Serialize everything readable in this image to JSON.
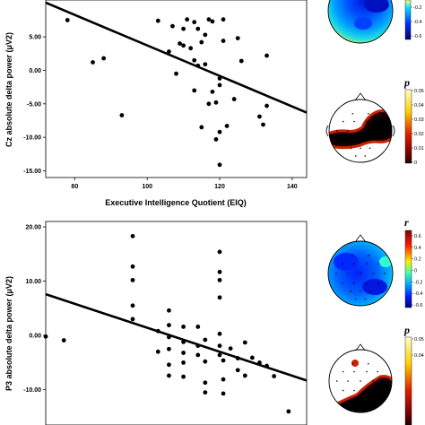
{
  "chart_data": [
    {
      "type": "scatter",
      "xlabel": "Executive Intelligence Quotient (EIQ)",
      "ylabel": "Cz absolute delta power (μV2)",
      "xlim": [
        72,
        144
      ],
      "ylim": [
        -16,
        10.5
      ],
      "x_ticks": [
        "80",
        "100",
        "120",
        "140"
      ],
      "y_ticks": [
        "5.00",
        "0.00",
        "-5.00",
        "-10.00",
        "-15.00"
      ],
      "x": [
        78,
        85,
        88,
        93,
        103,
        106,
        107,
        108,
        109,
        110,
        110,
        111,
        112,
        113,
        113,
        113,
        114,
        114,
        115,
        115,
        116,
        116,
        117,
        117,
        118,
        118,
        119,
        119,
        120,
        120,
        120,
        120,
        121,
        121,
        122,
        124,
        125,
        126,
        131,
        132,
        133,
        133
      ],
      "y": [
        7.5,
        1.2,
        1.8,
        -6.7,
        7.4,
        2.8,
        6.6,
        -0.5,
        4.0,
        6.2,
        3.7,
        7.6,
        3.3,
        1.5,
        -3.0,
        7.2,
        0.7,
        6.2,
        4.2,
        -8.5,
        5.3,
        0.9,
        7.6,
        -5.0,
        -3.2,
        7.3,
        -4.8,
        -10.3,
        -1.2,
        -9.2,
        -14.1,
        -2.2,
        7.6,
        4.4,
        -8.3,
        -4.3,
        4.8,
        1.4,
        -6.9,
        -8.1,
        -5.3,
        2.2
      ],
      "fit_line": {
        "x": [
          72,
          144
        ],
        "y": [
          10.1,
          -6.3
        ]
      }
    },
    {
      "type": "scatter",
      "xlabel": "",
      "ylabel": "P3 absolute delta power (μV2)",
      "xlim": [
        72,
        144
      ],
      "ylim": [
        -16.5,
        21
      ],
      "y_ticks": [
        "20.00",
        "10.00",
        "0.00",
        "-10.00"
      ],
      "x": [
        72,
        77,
        96,
        96,
        96,
        96,
        96,
        103,
        103,
        106,
        106,
        106,
        106,
        106,
        106,
        110,
        110,
        110,
        110,
        110,
        114,
        114,
        114,
        116,
        116,
        116,
        116,
        120,
        120,
        120,
        120,
        120,
        120,
        120,
        121,
        121,
        121,
        123,
        125,
        125,
        127,
        127,
        129,
        131,
        133,
        135,
        139
      ],
      "y": [
        -0.2,
        -0.9,
        18.3,
        12.7,
        10.2,
        5.5,
        3.0,
        0.8,
        -3.0,
        4.6,
        1.9,
        -0.3,
        -2.5,
        -5.4,
        -7.4,
        1.6,
        -1.2,
        -3.2,
        -5.0,
        -7.6,
        1.6,
        -1.9,
        -3.6,
        -0.8,
        -4.8,
        -8.7,
        -10.5,
        15.4,
        11.7,
        10.2,
        7.0,
        0.3,
        -1.9,
        -3.6,
        -4.6,
        -8.1,
        -10.7,
        -2.4,
        -4.2,
        -6.4,
        -1.3,
        -7.4,
        -4.1,
        -5.0,
        -5.6,
        -7.5,
        -14.0
      ],
      "fit_line": {
        "x": [
          72,
          144
        ],
        "y": [
          7.6,
          -8.3
        ]
      }
    }
  ],
  "topomaps": [
    {
      "colorbar_label": "",
      "colorbar_ticks": [
        "-0.2",
        "-0.4",
        "-0.6"
      ],
      "colors": [
        "#ffffa0",
        "#ff0000",
        "#0033ff",
        "#000060"
      ]
    },
    {
      "colorbar_label": "p",
      "colorbar_ticks": [
        "0.05",
        "0.04",
        "0.03",
        "0.02",
        "0.01",
        "0"
      ],
      "colors": [
        "#ffffc0",
        "#ff9900",
        "#cc0000",
        "#200000"
      ]
    },
    {
      "colorbar_label": "r",
      "colorbar_ticks": [
        "0.6",
        "0.4",
        "0.2",
        "0",
        "-0.2",
        "-0.4",
        "-0.6"
      ],
      "colors": [
        "#800000",
        "#ff0000",
        "#ffff00",
        "#00ffff",
        "#0000ff",
        "#000080"
      ]
    },
    {
      "colorbar_label": "p",
      "colorbar_ticks": [
        "0.05",
        "0.04"
      ],
      "colors": [
        "#ffffc0",
        "#ff9900",
        "#cc0000",
        "#200000"
      ]
    }
  ],
  "colors": {
    "points": "#000000",
    "fit_line": "#000000",
    "scalp_outline": "#000000"
  }
}
